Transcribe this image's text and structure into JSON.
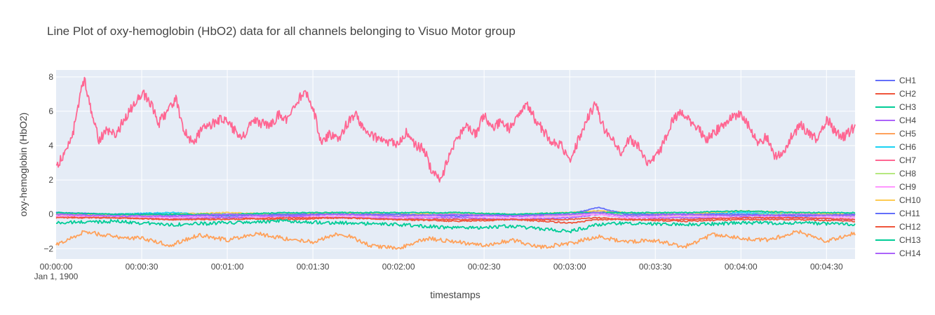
{
  "chart_data": {
    "type": "line",
    "title": "Line Plot of oxy-hemoglobin (HbO2) data for all channels belonging to Visuo Motor group",
    "xlabel": "timestamps",
    "ylabel": "oxy-hemoglobin (HbO2)",
    "x_unit": "seconds",
    "xlim": [
      0,
      280
    ],
    "ylim": [
      -2.6,
      8.4
    ],
    "x_ticks": [
      0,
      30,
      60,
      90,
      120,
      150,
      180,
      210,
      240,
      270
    ],
    "x_tick_labels": [
      "00:00:00",
      "00:00:30",
      "00:01:00",
      "00:01:30",
      "00:02:00",
      "00:02:30",
      "00:03:00",
      "00:03:30",
      "00:04:00",
      "00:04:30"
    ],
    "x_date_label": "Jan 1, 1900",
    "y_ticks": [
      -2,
      0,
      2,
      4,
      6,
      8
    ],
    "y_tick_labels": [
      "−2",
      "0",
      "2",
      "4",
      "6",
      "8"
    ],
    "grid": true,
    "legend_position": "right",
    "series": [
      {
        "name": "CH1",
        "color": "#636efa",
        "x": [
          0,
          20,
          40,
          60,
          80,
          100,
          120,
          140,
          160,
          180,
          190,
          200,
          220,
          240,
          260,
          280
        ],
        "values": [
          0.1,
          0.0,
          -0.1,
          -0.1,
          0.0,
          0.0,
          -0.1,
          0.0,
          -0.1,
          0.0,
          0.2,
          0.0,
          -0.1,
          0.0,
          -0.1,
          0.0
        ]
      },
      {
        "name": "CH2",
        "color": "#ef553b",
        "x": [
          0,
          20,
          40,
          60,
          80,
          100,
          120,
          140,
          160,
          180,
          190,
          200,
          220,
          240,
          260,
          280
        ],
        "values": [
          -0.1,
          -0.2,
          -0.3,
          -0.2,
          -0.3,
          -0.2,
          -0.3,
          -0.4,
          -0.3,
          -0.5,
          -0.3,
          -0.3,
          -0.4,
          -0.3,
          -0.3,
          -0.4
        ]
      },
      {
        "name": "CH3",
        "color": "#00cc96",
        "x": [
          0,
          20,
          40,
          60,
          80,
          100,
          120,
          140,
          160,
          180,
          190,
          200,
          220,
          240,
          260,
          280
        ],
        "values": [
          -0.5,
          -0.4,
          -0.6,
          -0.5,
          -0.4,
          -0.5,
          -0.6,
          -0.8,
          -0.7,
          -1.0,
          -0.6,
          -0.5,
          -0.6,
          -0.5,
          -0.5,
          -0.6
        ]
      },
      {
        "name": "CH4",
        "color": "#ab63fa",
        "x": [
          0,
          20,
          40,
          60,
          80,
          100,
          120,
          140,
          160,
          180,
          190,
          200,
          220,
          240,
          260,
          280
        ],
        "values": [
          0.0,
          -0.1,
          -0.2,
          -0.2,
          -0.1,
          -0.2,
          -0.2,
          -0.2,
          -0.3,
          -0.2,
          0.0,
          -0.2,
          -0.2,
          -0.2,
          -0.2,
          -0.3
        ]
      },
      {
        "name": "CH5",
        "color": "#ffa15a",
        "x": [
          0,
          10,
          20,
          30,
          40,
          50,
          60,
          70,
          80,
          90,
          100,
          110,
          120,
          130,
          140,
          150,
          160,
          170,
          180,
          190,
          200,
          210,
          220,
          230,
          240,
          250,
          260,
          270,
          280
        ],
        "values": [
          -1.8,
          -1.0,
          -1.3,
          -1.4,
          -1.8,
          -1.2,
          -1.5,
          -1.1,
          -1.4,
          -1.6,
          -1.1,
          -1.8,
          -2.0,
          -1.4,
          -1.6,
          -1.8,
          -1.5,
          -1.9,
          -1.7,
          -1.3,
          -1.6,
          -1.5,
          -1.9,
          -1.2,
          -1.4,
          -1.5,
          -1.0,
          -1.6,
          -1.1
        ]
      },
      {
        "name": "CH6",
        "color": "#19d3f3",
        "x": [
          0,
          20,
          40,
          60,
          80,
          100,
          120,
          140,
          160,
          180,
          190,
          200,
          220,
          240,
          260,
          280
        ],
        "values": [
          0.0,
          0.0,
          0.1,
          0.0,
          0.0,
          0.1,
          0.0,
          0.0,
          0.0,
          0.0,
          0.1,
          0.0,
          0.0,
          0.1,
          0.0,
          0.0
        ]
      },
      {
        "name": "CH7",
        "color": "#ff6692",
        "x": [
          0,
          3,
          6,
          9,
          10,
          12,
          15,
          18,
          21,
          24,
          27,
          30,
          33,
          36,
          39,
          42,
          45,
          48,
          51,
          54,
          57,
          60,
          63,
          66,
          69,
          72,
          75,
          78,
          81,
          84,
          87,
          90,
          93,
          96,
          99,
          102,
          105,
          108,
          111,
          114,
          117,
          120,
          123,
          126,
          129,
          132,
          135,
          138,
          141,
          144,
          147,
          150,
          153,
          156,
          159,
          162,
          165,
          168,
          171,
          174,
          177,
          180,
          183,
          186,
          189,
          192,
          195,
          198,
          201,
          204,
          207,
          210,
          213,
          216,
          219,
          222,
          225,
          228,
          231,
          234,
          237,
          240,
          243,
          246,
          249,
          252,
          255,
          258,
          261,
          264,
          267,
          270,
          273,
          276,
          280
        ],
        "values": [
          2.8,
          3.5,
          4.8,
          7.4,
          7.9,
          6.2,
          4.3,
          4.9,
          4.6,
          5.6,
          6.3,
          7.1,
          6.5,
          5.3,
          6.0,
          6.7,
          4.8,
          4.1,
          5.0,
          5.2,
          5.5,
          5.4,
          4.8,
          4.5,
          5.5,
          5.3,
          5.2,
          5.8,
          5.5,
          6.4,
          7.2,
          6.3,
          4.0,
          4.7,
          4.3,
          5.3,
          5.8,
          5.0,
          4.5,
          4.4,
          4.2,
          4.1,
          4.8,
          4.0,
          3.8,
          2.3,
          2.1,
          3.5,
          4.5,
          5.2,
          4.6,
          5.8,
          5.1,
          5.4,
          5.0,
          5.7,
          6.4,
          5.5,
          4.8,
          4.2,
          4.0,
          3.0,
          4.3,
          5.5,
          6.4,
          5.0,
          4.3,
          3.6,
          4.4,
          3.9,
          3.1,
          3.2,
          4.2,
          5.5,
          5.9,
          5.4,
          5.0,
          4.4,
          4.8,
          5.3,
          5.7,
          5.9,
          5.1,
          4.2,
          4.5,
          3.3,
          3.6,
          4.6,
          5.2,
          4.7,
          4.3,
          5.6,
          4.8,
          4.5,
          5.1
        ]
      },
      {
        "name": "CH8",
        "color": "#b6e880",
        "x": [
          0,
          20,
          40,
          60,
          80,
          100,
          120,
          140,
          160,
          180,
          190,
          200,
          220,
          240,
          260,
          280
        ],
        "values": [
          0.0,
          -0.1,
          0.0,
          -0.1,
          0.0,
          0.0,
          -0.1,
          0.0,
          0.0,
          -0.1,
          0.1,
          0.0,
          -0.1,
          0.0,
          0.0,
          -0.1
        ]
      },
      {
        "name": "CH9",
        "color": "#ff97ff",
        "x": [
          0,
          20,
          40,
          60,
          80,
          100,
          120,
          140,
          160,
          180,
          190,
          200,
          220,
          240,
          260,
          280
        ],
        "values": [
          -0.1,
          -0.1,
          -0.2,
          -0.1,
          -0.2,
          -0.1,
          -0.2,
          -0.1,
          -0.2,
          -0.1,
          0.0,
          -0.2,
          -0.1,
          -0.2,
          -0.1,
          -0.2
        ]
      },
      {
        "name": "CH10",
        "color": "#fecb52",
        "x": [
          0,
          20,
          40,
          60,
          80,
          100,
          120,
          140,
          160,
          180,
          190,
          200,
          220,
          240,
          260,
          280
        ],
        "values": [
          0.0,
          0.0,
          0.0,
          0.1,
          0.0,
          0.1,
          0.0,
          0.1,
          0.0,
          0.1,
          0.2,
          0.1,
          0.0,
          0.2,
          0.1,
          0.0
        ]
      },
      {
        "name": "CH11",
        "color": "#636efa",
        "x": [
          0,
          20,
          40,
          60,
          80,
          100,
          120,
          140,
          160,
          180,
          190,
          200,
          220,
          240,
          260,
          280
        ],
        "values": [
          0.1,
          0.0,
          0.0,
          -0.1,
          0.0,
          0.0,
          0.0,
          -0.1,
          0.0,
          0.0,
          0.4,
          0.0,
          0.0,
          0.0,
          -0.1,
          0.0
        ]
      },
      {
        "name": "CH12",
        "color": "#ef553b",
        "x": [
          0,
          20,
          40,
          60,
          80,
          100,
          120,
          140,
          160,
          180,
          190,
          200,
          220,
          240,
          260,
          280
        ],
        "values": [
          -0.2,
          -0.2,
          -0.3,
          -0.3,
          -0.2,
          -0.2,
          -0.3,
          -0.3,
          -0.3,
          -0.3,
          -0.2,
          -0.3,
          -0.3,
          -0.2,
          -0.2,
          -0.3
        ]
      },
      {
        "name": "CH13",
        "color": "#00cc96",
        "x": [
          0,
          20,
          40,
          60,
          80,
          100,
          120,
          140,
          160,
          180,
          190,
          200,
          220,
          240,
          260,
          280
        ],
        "values": [
          0.1,
          0.0,
          0.0,
          0.0,
          0.1,
          0.1,
          0.1,
          0.1,
          0.0,
          0.1,
          0.1,
          0.1,
          0.1,
          0.2,
          0.1,
          0.1
        ]
      },
      {
        "name": "CH14",
        "color": "#ab63fa",
        "x": [
          0,
          20,
          40,
          60,
          80,
          100,
          120,
          140,
          160,
          180,
          190,
          200,
          220,
          240,
          260,
          280
        ],
        "values": [
          0.0,
          -0.1,
          -0.1,
          0.0,
          -0.1,
          0.0,
          -0.1,
          0.0,
          -0.1,
          0.0,
          0.1,
          -0.1,
          0.0,
          -0.1,
          0.0,
          -0.1
        ]
      }
    ]
  }
}
